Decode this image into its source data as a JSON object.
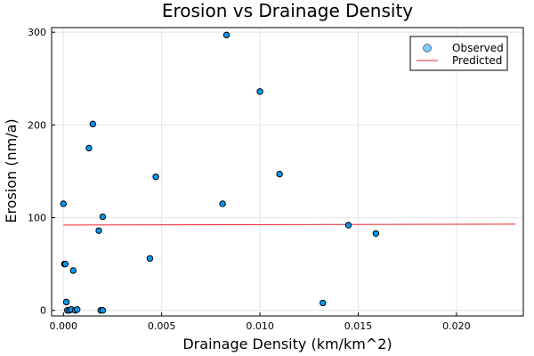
{
  "chart_data": {
    "type": "scatter",
    "title": "Erosion vs Drainage Density",
    "xlabel": "Drainage Density (km/km^2)",
    "ylabel": "Erosion (nm/a)",
    "xlim": [
      -0.0006,
      0.0234
    ],
    "ylim": [
      -6,
      305
    ],
    "xticks": [
      0.0,
      0.005,
      0.01,
      0.015,
      0.02
    ],
    "xtick_labels": [
      "0.000",
      "0.005",
      "0.010",
      "0.015",
      "0.020"
    ],
    "yticks": [
      0,
      100,
      200,
      300
    ],
    "ytick_labels": [
      "0",
      "100",
      "200",
      "300"
    ],
    "grid": true,
    "legend_position": "top-right",
    "series": [
      {
        "name": "Observed",
        "kind": "scatter",
        "color": "#009AFA",
        "x": [
          0.0,
          5e-05,
          0.0001,
          0.00015,
          0.0002,
          0.0003,
          0.0004,
          0.0005,
          0.0006,
          0.0007,
          0.0013,
          0.0015,
          0.0018,
          0.0019,
          0.002,
          0.002,
          0.0044,
          0.0047,
          0.0081,
          0.0083,
          0.01,
          0.011,
          0.0132,
          0.0145,
          0.0159
        ],
        "y": [
          115,
          50,
          50,
          9,
          0,
          0,
          1,
          43,
          0,
          1,
          175,
          201,
          86,
          0,
          0,
          101,
          56,
          144,
          115,
          297,
          236,
          147,
          8,
          92,
          83
        ]
      },
      {
        "name": "Predicted",
        "kind": "line",
        "color": "#E8232C",
        "x": [
          0.0,
          0.023
        ],
        "y": [
          92,
          93
        ]
      }
    ]
  }
}
